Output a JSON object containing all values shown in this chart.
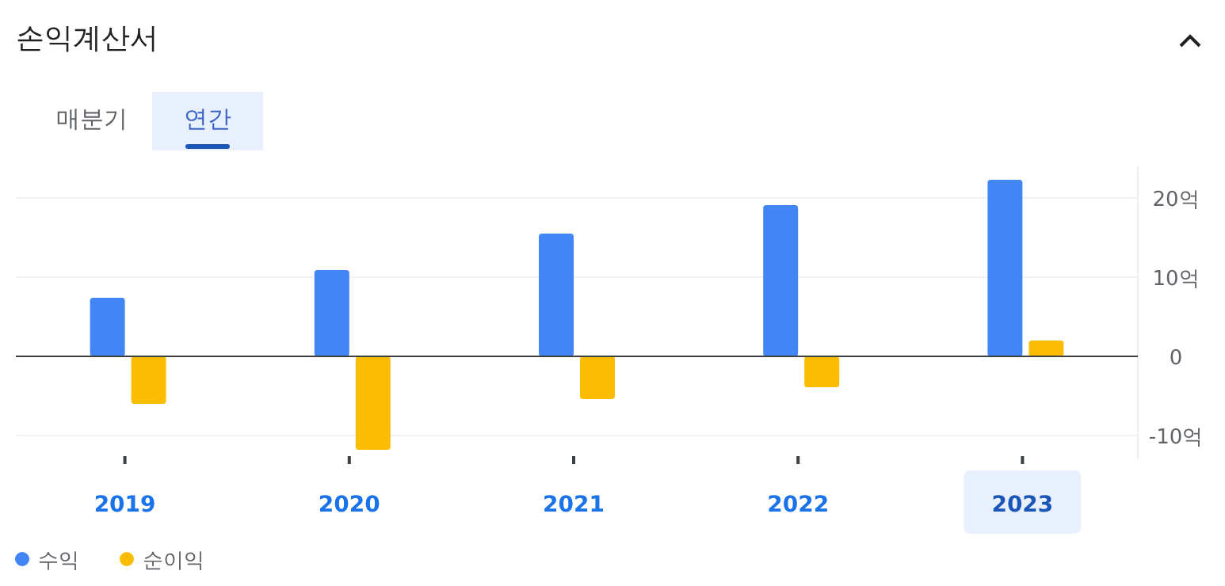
{
  "chart_data": {
    "type": "bar",
    "title": "손익계산서",
    "annotations": [
      "매분기",
      "연간"
    ],
    "categories": [
      "2019",
      "2020",
      "2021",
      "2022",
      "2023"
    ],
    "series": [
      {
        "name": "수익",
        "color": "#4285f4",
        "values": [
          7.4,
          10.9,
          15.5,
          19.1,
          22.3
        ]
      },
      {
        "name": "순이익",
        "color": "#fbbc04",
        "values": [
          -6.0,
          -11.8,
          -5.4,
          -3.9,
          2.0
        ]
      }
    ],
    "ylim": [
      -13,
      24
    ],
    "yticks": [
      {
        "value": -10,
        "label": "-10억"
      },
      {
        "value": 0,
        "label": "0"
      },
      {
        "value": 10,
        "label": "10억"
      },
      {
        "value": 20,
        "label": "20억"
      }
    ],
    "grid": "y",
    "legend": "bottom left"
  }
}
